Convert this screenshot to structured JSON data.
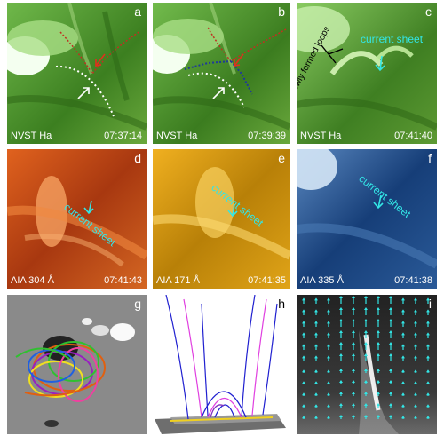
{
  "panels": [
    {
      "id": "a",
      "label": "a",
      "instrument": "NVST Ha",
      "time": "07:37:14"
    },
    {
      "id": "b",
      "label": "b",
      "instrument": "NVST Ha",
      "time": "07:39:39"
    },
    {
      "id": "c",
      "label": "c",
      "instrument": "NVST Ha",
      "time": "07:41:40",
      "annotations": [
        "newly formed loops",
        "current sheet"
      ]
    },
    {
      "id": "d",
      "label": "d",
      "instrument": "AIA 304 Å",
      "time": "07:41:43",
      "annotations": [
        "current sheet"
      ]
    },
    {
      "id": "e",
      "label": "e",
      "instrument": "AIA 171 Å",
      "time": "07:41:35",
      "annotations": [
        "current sheet"
      ]
    },
    {
      "id": "f",
      "label": "f",
      "instrument": "AIA 335 Å",
      "time": "07:41:38",
      "annotations": [
        "current sheet"
      ]
    },
    {
      "id": "g",
      "label": "g"
    },
    {
      "id": "h",
      "label": "h"
    },
    {
      "id": "i",
      "label": "i"
    }
  ],
  "colors": {
    "ha_green": "#4c9a2a",
    "aia304": "#c8501a",
    "aia171": "#d8a010",
    "aia335": "#1a4c8c",
    "annotation_cyan": "#33e6e6",
    "arrow_red": "#e0301c"
  },
  "icons": [
    "white-arrow",
    "red-arrow",
    "cyan-arrow",
    "black-arrow"
  ]
}
